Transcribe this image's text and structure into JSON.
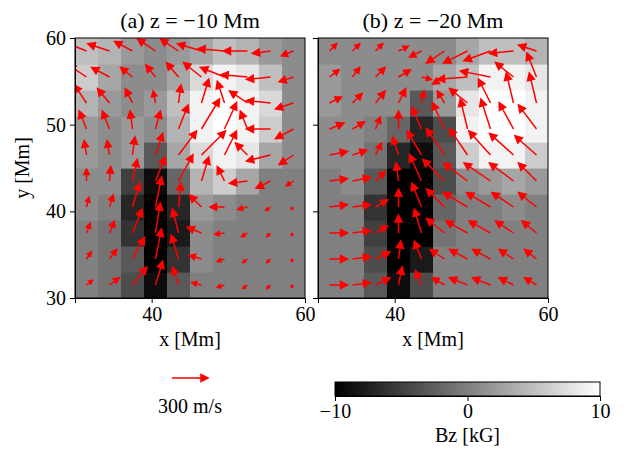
{
  "chart_data": {
    "type": "heatmap",
    "panels": [
      {
        "type": "heatmap",
        "title": "(a) z = −10 Mm",
        "x_label": "x [Mm]",
        "y_label": "y [Mm]",
        "xlim": [
          30,
          60
        ],
        "ylim": [
          30,
          60
        ],
        "xticks": [
          40,
          60
        ],
        "yticks": [
          30,
          40,
          50,
          60
        ],
        "x": [
          31.5,
          34.5,
          37.5,
          40.5,
          43.5,
          46.5,
          49.5,
          52.5,
          55.5,
          58.5
        ],
        "y": [
          31.5,
          34.5,
          37.5,
          40.5,
          43.5,
          46.5,
          49.5,
          52.5,
          55.5,
          58.5
        ],
        "z": [
          [
            0,
            -1,
            -4,
            -9,
            -3,
            0,
            0,
            0,
            0,
            0
          ],
          [
            0,
            -1,
            -3,
            -10,
            -6,
            1,
            0,
            0,
            0,
            0
          ],
          [
            0,
            -1,
            -6,
            -10,
            -8,
            1,
            0,
            0,
            0,
            0
          ],
          [
            1,
            0,
            -7,
            -10,
            -7,
            2,
            1,
            0,
            0,
            0
          ],
          [
            1,
            1,
            -5,
            -9,
            -2,
            4,
            6,
            3,
            0,
            0
          ],
          [
            2,
            1,
            2,
            -3,
            3,
            7,
            9,
            8,
            3,
            1
          ],
          [
            2,
            1,
            2,
            1,
            4,
            9,
            10,
            9,
            6,
            1
          ],
          [
            4,
            2,
            1,
            2,
            5,
            9,
            10,
            9,
            7,
            1
          ],
          [
            6,
            3,
            1,
            1,
            3,
            7,
            9,
            8,
            5,
            1
          ],
          [
            5,
            4,
            2,
            1,
            2,
            3,
            5,
            4,
            2,
            1
          ]
        ],
        "vectors": {
          "u": [
            [
              50,
              80,
              120,
              60,
              -50,
              -80,
              -60,
              -40,
              -30,
              -20
            ],
            [
              40,
              60,
              100,
              50,
              -60,
              -100,
              -60,
              -40,
              -30,
              -20
            ],
            [
              30,
              40,
              80,
              40,
              -50,
              -120,
              -80,
              -50,
              -30,
              -20
            ],
            [
              20,
              30,
              60,
              50,
              20,
              -100,
              -120,
              -80,
              -40,
              -20
            ],
            [
              0,
              10,
              40,
              80,
              120,
              60,
              -60,
              -150,
              -120,
              -60
            ],
            [
              -20,
              -20,
              20,
              60,
              150,
              200,
              100,
              -100,
              -200,
              -120
            ],
            [
              -60,
              -60,
              -20,
              40,
              80,
              150,
              100,
              -60,
              -200,
              -150
            ],
            [
              -100,
              -100,
              -60,
              -20,
              20,
              60,
              -60,
              -150,
              -200,
              -150
            ],
            [
              -150,
              -150,
              -100,
              -80,
              -100,
              -150,
              -200,
              -220,
              -200,
              -120
            ],
            [
              -200,
              -180,
              -150,
              -150,
              -150,
              -200,
              -220,
              -200,
              -150,
              -100
            ]
          ],
          "v": [
            [
              40,
              60,
              150,
              200,
              150,
              20,
              -20,
              -30,
              -30,
              -20
            ],
            [
              60,
              80,
              180,
              250,
              200,
              30,
              -20,
              -30,
              -30,
              -20
            ],
            [
              80,
              100,
              200,
              250,
              200,
              50,
              -10,
              -30,
              -30,
              -20
            ],
            [
              80,
              100,
              200,
              250,
              200,
              100,
              0,
              -20,
              -30,
              -20
            ],
            [
              100,
              120,
              180,
              200,
              220,
              200,
              120,
              -20,
              -60,
              -40
            ],
            [
              120,
              120,
              150,
              180,
              200,
              200,
              200,
              100,
              -50,
              -80
            ],
            [
              150,
              150,
              150,
              150,
              200,
              250,
              220,
              150,
              0,
              -80
            ],
            [
              150,
              120,
              120,
              100,
              150,
              200,
              180,
              100,
              20,
              -50
            ],
            [
              100,
              80,
              80,
              100,
              120,
              120,
              80,
              20,
              -20,
              -40
            ],
            [
              80,
              60,
              80,
              100,
              100,
              60,
              20,
              0,
              -20,
              -40
            ]
          ]
        }
      },
      {
        "type": "heatmap",
        "title": "(b) z = −20 Mm",
        "x_label": "x [Mm]",
        "tick_labels": "x",
        "xlim": [
          30,
          60
        ],
        "ylim": [
          30,
          60
        ],
        "xticks": [
          40,
          60
        ],
        "yticks": [
          30,
          40,
          50,
          60
        ],
        "x": [
          31.5,
          34.5,
          37.5,
          40.5,
          43.5,
          46.5,
          49.5,
          52.5,
          55.5,
          58.5
        ],
        "y": [
          31.5,
          34.5,
          37.5,
          40.5,
          43.5,
          46.5,
          49.5,
          52.5,
          55.5,
          58.5
        ],
        "z": [
          [
            0,
            0,
            -3,
            -9,
            -4,
            0,
            0,
            0,
            0,
            0
          ],
          [
            0,
            0,
            -4,
            -10,
            -8,
            0,
            0,
            0,
            0,
            0
          ],
          [
            0,
            0,
            -5,
            -10,
            -10,
            -1,
            0,
            0,
            0,
            0
          ],
          [
            0,
            0,
            -6,
            -10,
            -10,
            -2,
            0,
            0,
            1,
            0
          ],
          [
            0,
            1,
            -3,
            -10,
            -10,
            -4,
            1,
            2,
            3,
            2
          ],
          [
            1,
            1,
            -1,
            -7,
            -9,
            -3,
            6,
            9,
            9,
            6
          ],
          [
            1,
            1,
            0,
            -2,
            -7,
            -4,
            9,
            10,
            10,
            9
          ],
          [
            2,
            1,
            1,
            1,
            -3,
            2,
            8,
            10,
            10,
            9
          ],
          [
            2,
            1,
            1,
            1,
            1,
            3,
            5,
            9,
            9,
            8
          ],
          [
            1,
            1,
            1,
            1,
            1,
            1,
            3,
            5,
            5,
            4
          ]
        ],
        "vectors": {
          "u": [
            [
              150,
              150,
              120,
              30,
              -50,
              -100,
              -150,
              -150,
              -120,
              -100
            ],
            [
              150,
              150,
              120,
              20,
              -60,
              -120,
              -150,
              -150,
              -120,
              -100
            ],
            [
              150,
              150,
              100,
              0,
              -60,
              -150,
              -180,
              -180,
              -150,
              -120
            ],
            [
              150,
              150,
              100,
              0,
              -80,
              -150,
              -200,
              -200,
              -180,
              -150
            ],
            [
              150,
              150,
              80,
              -20,
              -100,
              -180,
              -200,
              -220,
              -200,
              -150
            ],
            [
              150,
              120,
              50,
              -50,
              -120,
              -150,
              -150,
              -180,
              -200,
              -180
            ],
            [
              120,
              100,
              40,
              0,
              -80,
              -100,
              -60,
              -80,
              -120,
              -150
            ],
            [
              100,
              80,
              80,
              60,
              20,
              -60,
              -150,
              -100,
              -60,
              -60
            ],
            [
              80,
              60,
              80,
              100,
              80,
              -100,
              -250,
              -250,
              -150,
              -80
            ],
            [
              60,
              60,
              60,
              80,
              -100,
              -150,
              -200,
              -220,
              -200,
              -150
            ]
          ],
          "v": [
            [
              0,
              20,
              60,
              150,
              120,
              60,
              60,
              60,
              60,
              60
            ],
            [
              0,
              20,
              60,
              150,
              150,
              80,
              80,
              80,
              80,
              80
            ],
            [
              0,
              20,
              60,
              150,
              200,
              120,
              100,
              100,
              100,
              100
            ],
            [
              20,
              20,
              60,
              150,
              200,
              150,
              120,
              120,
              120,
              120
            ],
            [
              20,
              30,
              80,
              150,
              220,
              180,
              150,
              150,
              150,
              150
            ],
            [
              30,
              40,
              100,
              150,
              200,
              220,
              220,
              200,
              180,
              160
            ],
            [
              50,
              60,
              100,
              150,
              180,
              220,
              250,
              250,
              220,
              200
            ],
            [
              50,
              80,
              100,
              120,
              100,
              100,
              120,
              200,
              250,
              250
            ],
            [
              60,
              80,
              80,
              60,
              -20,
              -60,
              -20,
              50,
              120,
              200
            ],
            [
              60,
              60,
              60,
              40,
              -50,
              -100,
              -100,
              -80,
              -20,
              50
            ]
          ]
        }
      }
    ],
    "colorbar": {
      "range": [
        -10,
        10
      ],
      "ticks": [
        {
          "value": -10,
          "label": "−10"
        },
        0,
        10
      ],
      "label": "Bz [kG]"
    },
    "reference_vector": {
      "value": 300,
      "label": "300 m/s"
    },
    "color": "#ff0000"
  }
}
